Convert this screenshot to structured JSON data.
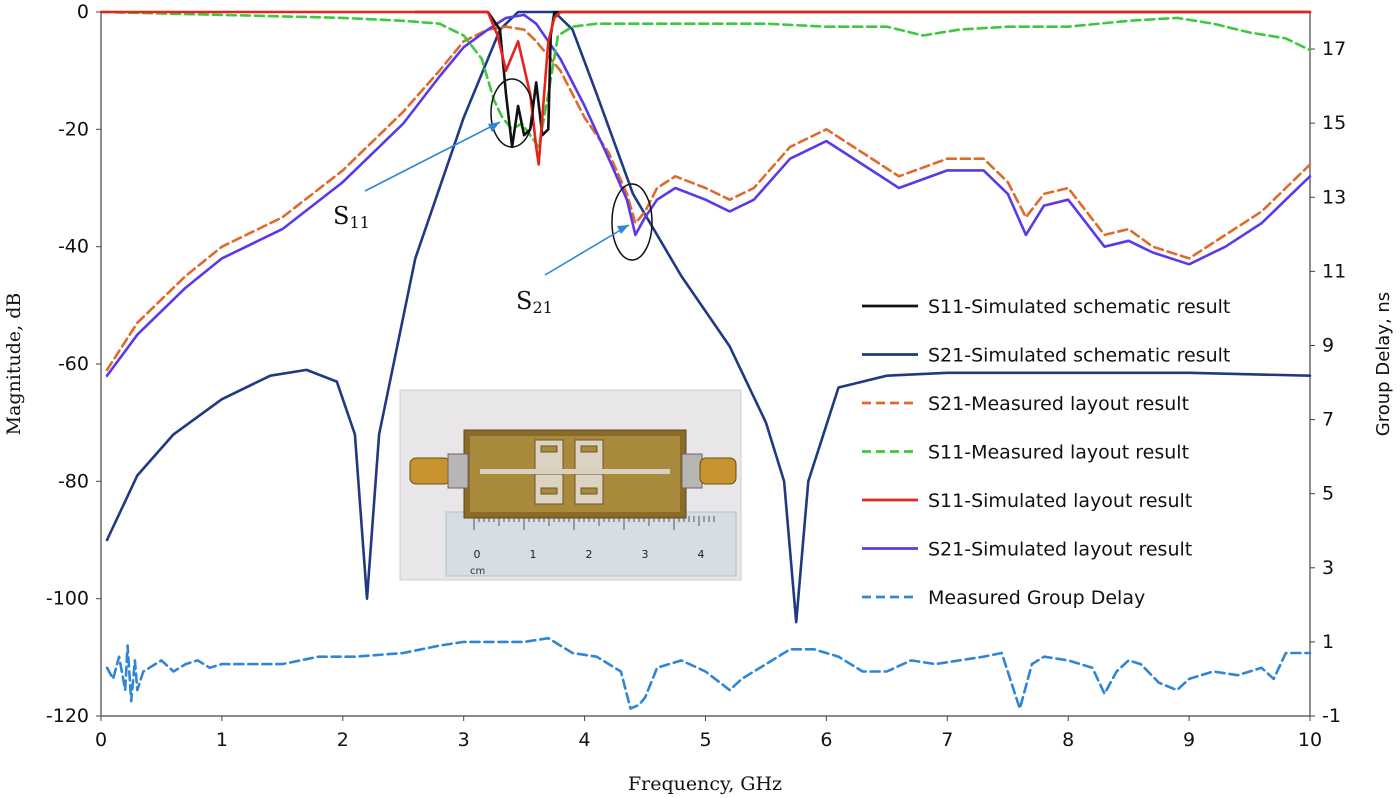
{
  "chart_data": {
    "type": "line",
    "xlabel": "Frequency,  GHz",
    "ylabel": "Magnitude,  dB",
    "y2label": "Group Delay, ns",
    "xlim": [
      0,
      10
    ],
    "ylim": [
      -120,
      0
    ],
    "y2lim": [
      -1,
      18
    ],
    "x_ticks": [
      0,
      1,
      2,
      3,
      4,
      5,
      6,
      7,
      8,
      9,
      10
    ],
    "y_ticks": [
      0,
      -20,
      -40,
      -60,
      -80,
      -100,
      -120
    ],
    "y2_ticks": [
      17,
      15,
      13,
      11,
      9,
      7,
      5,
      3,
      1,
      -1
    ],
    "grid": false,
    "legend_position": "right-middle",
    "series": [
      {
        "name": "S11-Simulated schematic result",
        "color": "#111111",
        "style": "solid",
        "axis": "left",
        "x": [
          2.6,
          3.2,
          3.3,
          3.35,
          3.4,
          3.45,
          3.5,
          3.55,
          3.6,
          3.65,
          3.7,
          3.72,
          3.75,
          3.8,
          4.0,
          10.0
        ],
        "y": [
          0,
          0,
          -3,
          -14,
          -23,
          -16,
          -21,
          -20,
          -12,
          -21,
          -20,
          -4,
          0,
          0,
          0,
          0
        ]
      },
      {
        "name": "S21-Simulated schematic result",
        "color": "#1f3a82",
        "style": "solid",
        "axis": "left",
        "x": [
          0.05,
          0.3,
          0.6,
          1.0,
          1.4,
          1.7,
          1.95,
          2.1,
          2.2,
          2.3,
          2.6,
          3.0,
          3.3,
          3.45,
          3.55,
          3.75,
          3.9,
          4.1,
          4.4,
          4.8,
          5.2,
          5.5,
          5.65,
          5.75,
          5.85,
          6.1,
          6.5,
          7.0,
          8.0,
          9.0,
          10.0
        ],
        "y": [
          -90,
          -79,
          -72,
          -66,
          -62,
          -61,
          -63,
          -72,
          -100,
          -72,
          -42,
          -18,
          -3,
          0,
          0,
          0,
          -3,
          -14,
          -31,
          -45,
          -57,
          -70,
          -80,
          -104,
          -80,
          -64,
          -62,
          -61.5,
          -61.5,
          -61.5,
          -62
        ]
      },
      {
        "name": "S21-Measured layout result",
        "color": "#e06a2c",
        "style": "dashed",
        "axis": "left",
        "x": [
          0.05,
          0.3,
          0.7,
          1.0,
          1.5,
          2.0,
          2.5,
          2.8,
          3.0,
          3.2,
          3.35,
          3.5,
          3.6,
          3.8,
          4.0,
          4.2,
          4.35,
          4.42,
          4.5,
          4.6,
          4.75,
          5.0,
          5.2,
          5.4,
          5.7,
          6.0,
          6.3,
          6.6,
          7.0,
          7.3,
          7.5,
          7.65,
          7.8,
          8.0,
          8.3,
          8.5,
          8.7,
          9.0,
          9.3,
          9.6,
          9.8,
          10.0
        ],
        "y": [
          -61,
          -53,
          -45,
          -40,
          -35,
          -27,
          -17,
          -10,
          -5,
          -3,
          -2.5,
          -3,
          -5,
          -10,
          -18,
          -24,
          -31,
          -36,
          -34,
          -30,
          -28,
          -30,
          -32,
          -30,
          -23,
          -20,
          -24,
          -28,
          -25,
          -25,
          -29,
          -35,
          -31,
          -30,
          -38,
          -37,
          -40,
          -42,
          -38,
          -34,
          -30,
          -26
        ]
      },
      {
        "name": "S11-Measured layout result",
        "color": "#3ec83e",
        "style": "dashed",
        "axis": "left",
        "x": [
          0.0,
          1.0,
          2.0,
          2.5,
          2.8,
          3.0,
          3.15,
          3.25,
          3.32,
          3.4,
          3.48,
          3.55,
          3.62,
          3.7,
          3.78,
          3.9,
          4.1,
          4.5,
          5.0,
          5.5,
          6.0,
          6.5,
          6.8,
          7.1,
          7.5,
          8.0,
          8.5,
          8.9,
          9.2,
          9.5,
          9.8,
          10.0
        ],
        "y": [
          0,
          -0.5,
          -1,
          -1.5,
          -2,
          -4,
          -8,
          -15,
          -18,
          -20,
          -19,
          -21,
          -23,
          -14,
          -4,
          -2.5,
          -2,
          -2,
          -2,
          -2,
          -2.5,
          -2.5,
          -4,
          -3,
          -2.5,
          -2.5,
          -1.5,
          -1,
          -2,
          -3.5,
          -4.5,
          -6.5
        ]
      },
      {
        "name": "S11-Simulated layout result",
        "color": "#e8231b",
        "style": "solid",
        "axis": "left",
        "x": [
          0.0,
          3.2,
          3.28,
          3.35,
          3.45,
          3.55,
          3.6,
          3.62,
          3.65,
          3.7,
          3.75,
          3.8,
          10.0
        ],
        "y": [
          0,
          0,
          -4,
          -10,
          -5,
          -14,
          -23,
          -26,
          -18,
          -5,
          -1,
          0,
          0
        ]
      },
      {
        "name": "S21-Simulated layout result",
        "color": "#5a3ae8",
        "style": "solid",
        "axis": "left",
        "x": [
          0.05,
          0.3,
          0.7,
          1.0,
          1.5,
          2.0,
          2.5,
          2.8,
          3.0,
          3.2,
          3.35,
          3.5,
          3.6,
          3.8,
          4.0,
          4.2,
          4.35,
          4.42,
          4.5,
          4.6,
          4.75,
          5.0,
          5.2,
          5.4,
          5.7,
          6.0,
          6.3,
          6.6,
          7.0,
          7.3,
          7.5,
          7.65,
          7.8,
          8.0,
          8.3,
          8.5,
          8.7,
          9.0,
          9.3,
          9.6,
          9.8,
          10.0
        ],
        "y": [
          -62,
          -55,
          -47,
          -42,
          -37,
          -29,
          -19,
          -11,
          -6,
          -3,
          -1,
          -0.5,
          -2,
          -8,
          -16,
          -25,
          -32,
          -38,
          -35,
          -32,
          -30,
          -32,
          -34,
          -32,
          -25,
          -22,
          -26,
          -30,
          -27,
          -27,
          -31,
          -38,
          -33,
          -32,
          -40,
          -39,
          -41,
          -43,
          -40,
          -36,
          -32,
          -28
        ]
      },
      {
        "name": "Measured Group Delay",
        "color": "#2f86d6",
        "style": "dashed",
        "axis": "right",
        "x": [
          0.05,
          0.1,
          0.15,
          0.2,
          0.22,
          0.25,
          0.28,
          0.3,
          0.35,
          0.4,
          0.5,
          0.6,
          0.7,
          0.8,
          0.9,
          1.0,
          1.2,
          1.5,
          1.8,
          2.1,
          2.5,
          2.8,
          3.0,
          3.2,
          3.5,
          3.7,
          3.9,
          4.1,
          4.3,
          4.38,
          4.45,
          4.5,
          4.6,
          4.8,
          5.0,
          5.2,
          5.3,
          5.5,
          5.7,
          5.9,
          6.1,
          6.3,
          6.5,
          6.7,
          6.9,
          7.1,
          7.3,
          7.45,
          7.55,
          7.6,
          7.65,
          7.7,
          7.8,
          8.0,
          8.2,
          8.3,
          8.4,
          8.5,
          8.6,
          8.75,
          8.9,
          9.0,
          9.2,
          9.4,
          9.6,
          9.7,
          9.8,
          10.0
        ],
        "y": [
          0.3,
          0.0,
          0.6,
          -0.3,
          0.9,
          -0.6,
          0.5,
          -0.3,
          0.2,
          0.3,
          0.5,
          0.2,
          0.4,
          0.5,
          0.3,
          0.4,
          0.4,
          0.4,
          0.6,
          0.6,
          0.7,
          0.9,
          1.0,
          1.0,
          1.0,
          1.1,
          0.7,
          0.6,
          0.2,
          -0.8,
          -0.7,
          -0.5,
          0.3,
          0.5,
          0.2,
          -0.3,
          0.0,
          0.4,
          0.8,
          0.8,
          0.6,
          0.2,
          0.2,
          0.5,
          0.4,
          0.5,
          0.6,
          0.7,
          -0.3,
          -0.8,
          -0.2,
          0.4,
          0.6,
          0.5,
          0.3,
          -0.4,
          0.2,
          0.5,
          0.4,
          -0.1,
          -0.3,
          0.0,
          0.2,
          0.1,
          0.3,
          0.0,
          0.7,
          0.7
        ]
      }
    ],
    "annotations": [
      {
        "text": "S",
        "sub": "11"
      },
      {
        "text": "S",
        "sub": "21"
      }
    ]
  },
  "inset": {
    "ruler_numbers": [
      "0",
      "1",
      "2",
      "3",
      "4"
    ],
    "ruler_unit": "cm"
  }
}
